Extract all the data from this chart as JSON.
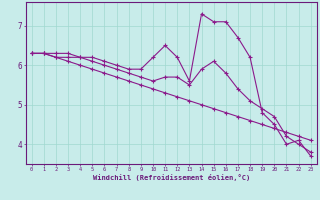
{
  "hours": [
    0,
    1,
    2,
    3,
    4,
    5,
    6,
    7,
    8,
    9,
    10,
    11,
    12,
    13,
    14,
    15,
    16,
    17,
    18,
    19,
    20,
    21,
    22,
    23
  ],
  "line1": [
    6.3,
    6.3,
    6.3,
    6.3,
    6.2,
    6.2,
    6.1,
    6.0,
    5.9,
    5.9,
    6.2,
    6.5,
    6.2,
    5.6,
    7.3,
    7.1,
    7.1,
    6.7,
    6.2,
    4.8,
    4.5,
    4.0,
    4.1,
    3.7
  ],
  "line2": [
    6.3,
    6.3,
    6.2,
    6.2,
    6.2,
    6.1,
    6.0,
    5.9,
    5.8,
    5.7,
    5.6,
    5.7,
    5.7,
    5.5,
    5.9,
    6.1,
    5.8,
    5.4,
    5.1,
    4.9,
    4.7,
    4.2,
    4.0,
    3.8
  ],
  "line3": [
    6.3,
    6.3,
    6.2,
    6.1,
    6.0,
    5.9,
    5.8,
    5.7,
    5.6,
    5.5,
    5.4,
    5.3,
    5.2,
    5.1,
    5.0,
    4.9,
    4.8,
    4.7,
    4.6,
    4.5,
    4.4,
    4.3,
    4.2,
    4.1
  ],
  "line_color": "#8b1a8b",
  "bg_color": "#c8ecea",
  "grid_color": "#a0d8d0",
  "axis_color": "#6b1a7a",
  "xlabel": "Windchill (Refroidissement éolien,°C)",
  "yticks": [
    4,
    5,
    6,
    7
  ],
  "xticks": [
    0,
    1,
    2,
    3,
    4,
    5,
    6,
    7,
    8,
    9,
    10,
    11,
    12,
    13,
    14,
    15,
    16,
    17,
    18,
    19,
    20,
    21,
    22,
    23
  ],
  "ylim": [
    3.5,
    7.6
  ],
  "xlim": [
    -0.5,
    23.5
  ]
}
